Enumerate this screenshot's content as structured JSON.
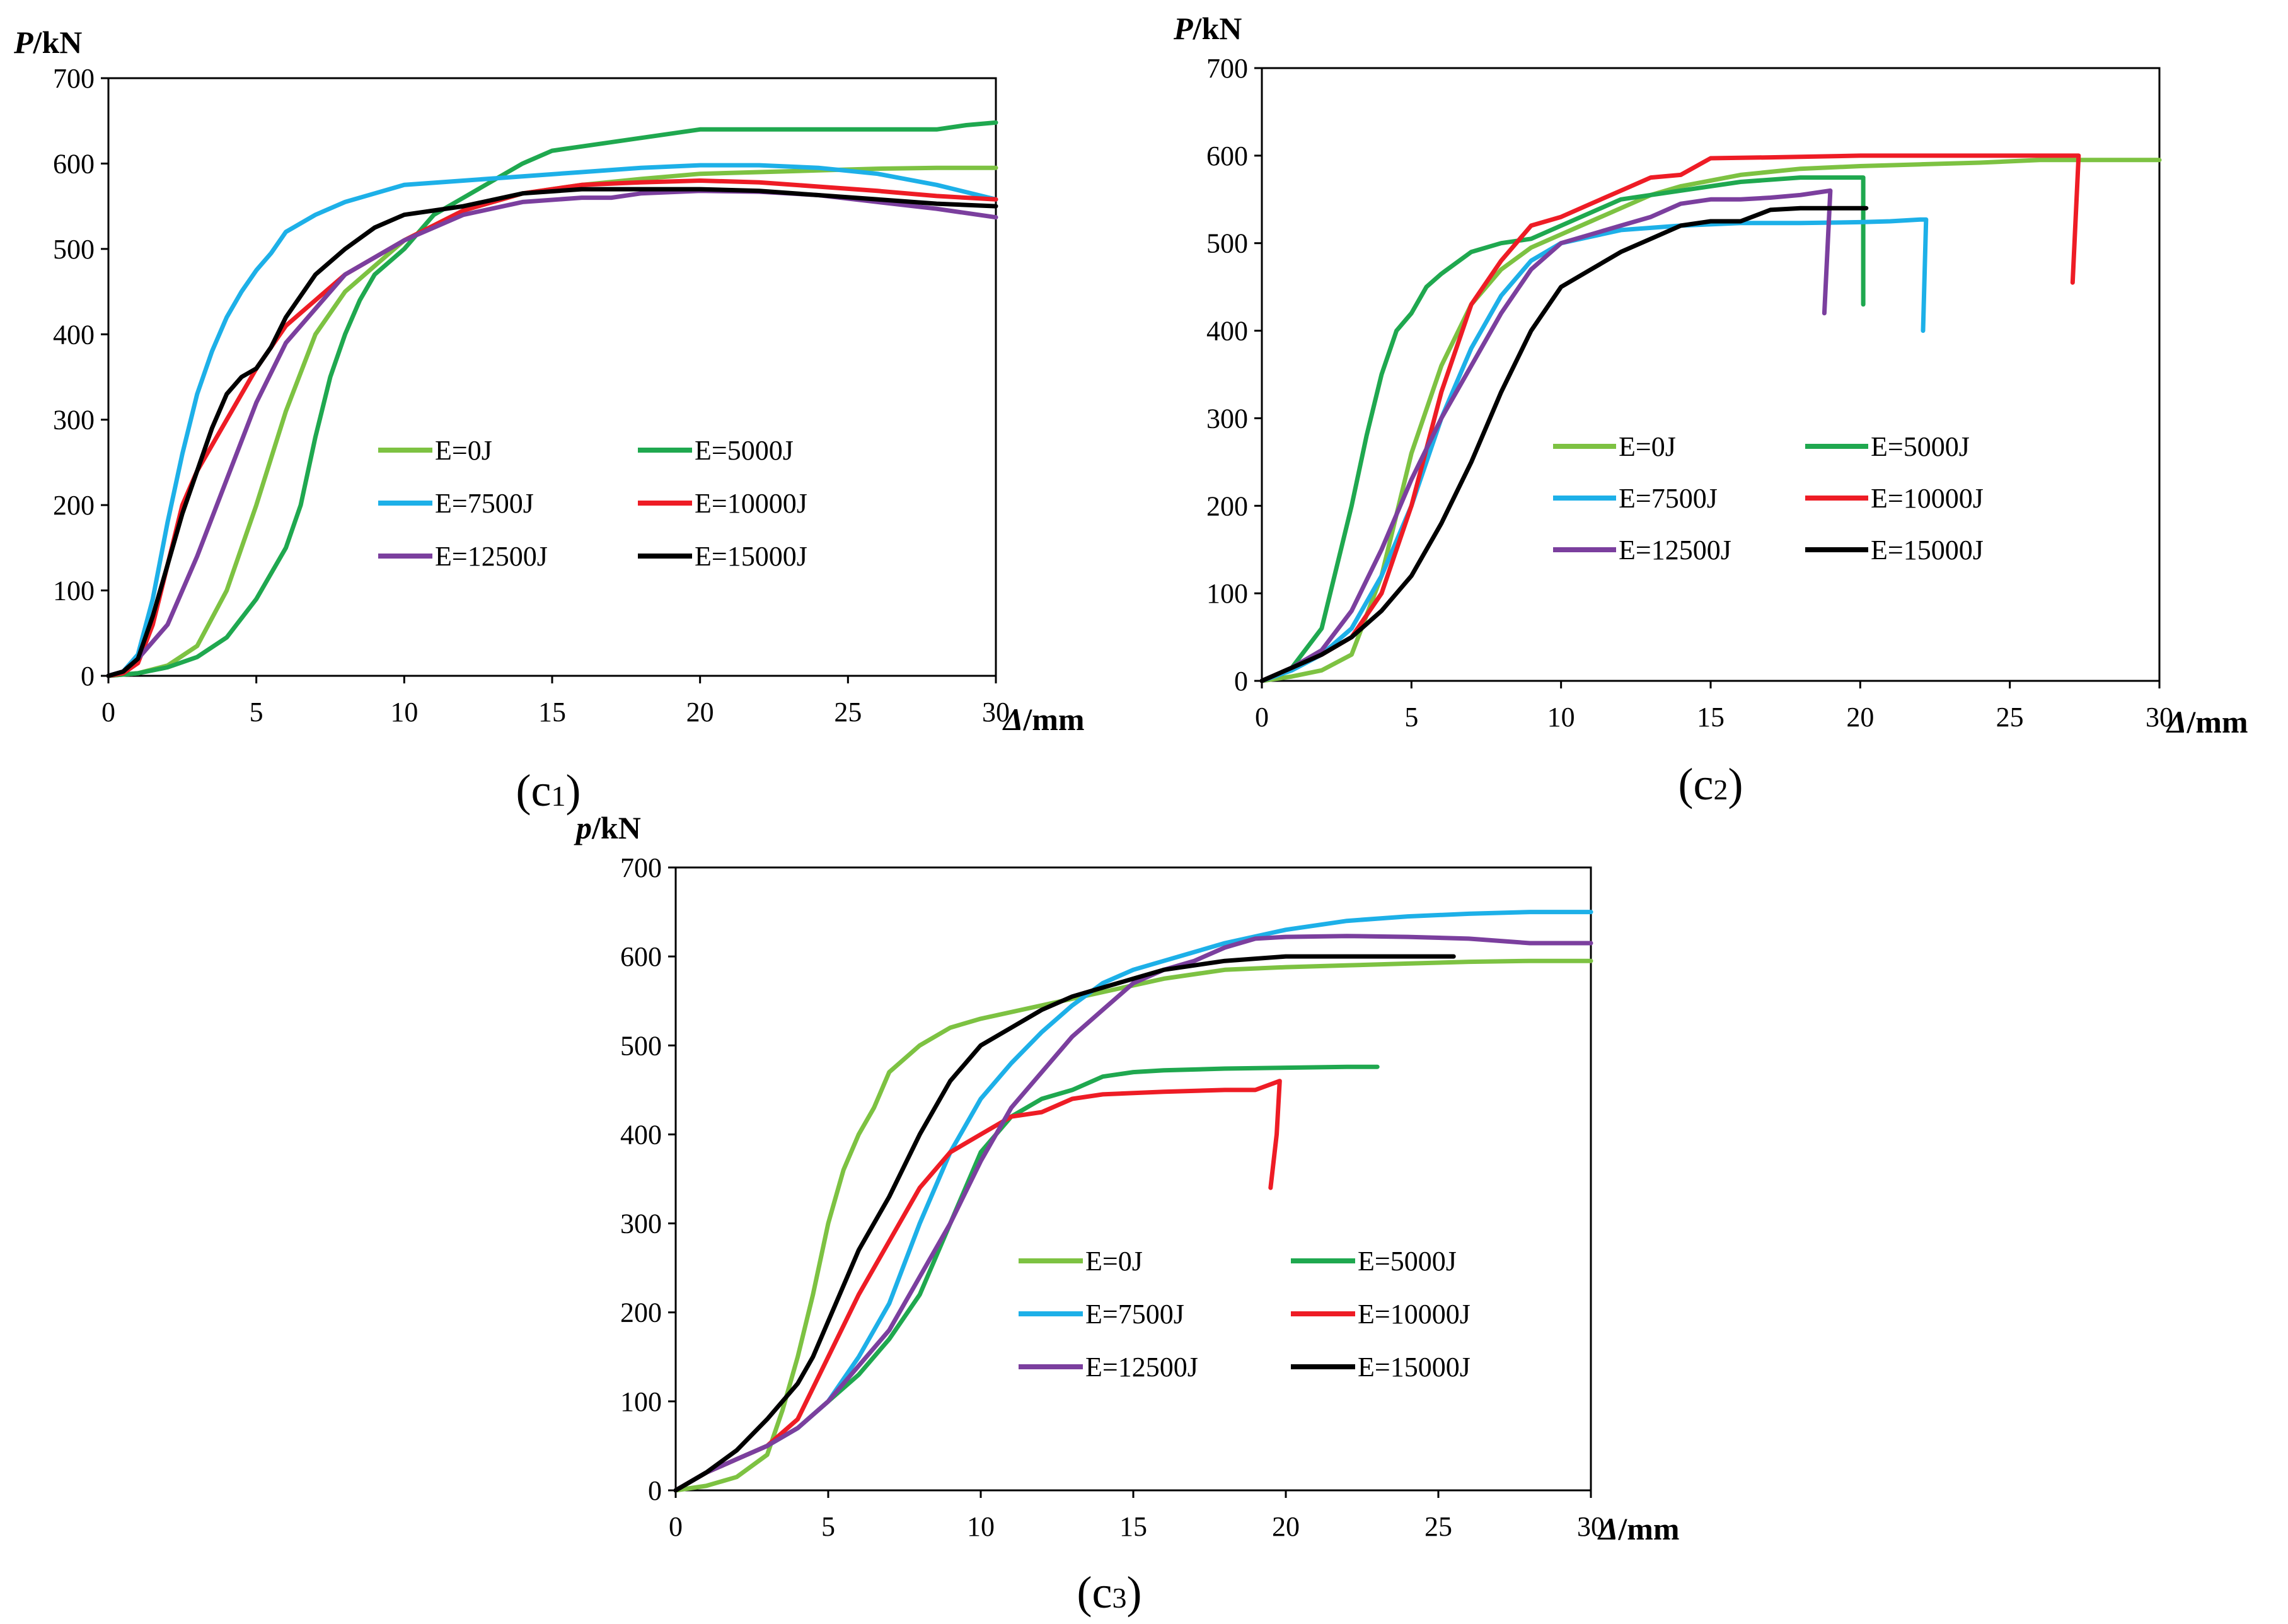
{
  "chart_data": [
    {
      "id": "c1",
      "type": "line",
      "caption_letter": "c",
      "caption_index": "1",
      "ylabel_var": "P",
      "ylabel_unit": "/kN",
      "xlabel_var": "Δ",
      "xlabel_unit": "/mm",
      "xlim": [
        0,
        30
      ],
      "ylim": [
        0,
        700
      ],
      "xticks": [
        "0",
        "5",
        "10",
        "15",
        "20",
        "25",
        "30"
      ],
      "yticks": [
        "0",
        "100",
        "200",
        "300",
        "400",
        "500",
        "600",
        "700"
      ],
      "series": [
        {
          "name": "E=0J",
          "color": "#7DC242",
          "x": [
            0,
            1,
            2,
            3,
            4,
            5,
            6,
            7,
            8,
            9,
            10,
            12,
            14,
            16,
            18,
            20,
            22,
            24,
            26,
            28,
            30
          ],
          "y": [
            0,
            3,
            12,
            35,
            100,
            200,
            310,
            400,
            450,
            480,
            510,
            545,
            565,
            575,
            582,
            588,
            590,
            592,
            594,
            595,
            595
          ]
        },
        {
          "name": "E=5000J",
          "color": "#1FA84F",
          "x": [
            0,
            1,
            2,
            3,
            4,
            5,
            6,
            6.5,
            7,
            7.5,
            8,
            8.5,
            9,
            10,
            11,
            12,
            13,
            14,
            15,
            16,
            18,
            20,
            22,
            24,
            26,
            28,
            29,
            30
          ],
          "y": [
            0,
            3,
            10,
            22,
            45,
            90,
            150,
            200,
            280,
            350,
            400,
            440,
            470,
            500,
            540,
            560,
            580,
            600,
            615,
            620,
            630,
            640,
            640,
            640,
            640,
            640,
            645,
            648
          ]
        },
        {
          "name": "E=7500J",
          "color": "#1DB0E8",
          "x": [
            0,
            0.5,
            1,
            1.5,
            2,
            2.5,
            3,
            3.5,
            4,
            4.5,
            5,
            5.5,
            6,
            7,
            8,
            9,
            10,
            12,
            14,
            16,
            18,
            20,
            22,
            24,
            26,
            28,
            30
          ],
          "y": [
            0,
            5,
            25,
            90,
            180,
            260,
            330,
            380,
            420,
            450,
            475,
            495,
            520,
            540,
            555,
            565,
            575,
            580,
            585,
            590,
            595,
            598,
            598,
            595,
            588,
            575,
            558
          ]
        },
        {
          "name": "E=10000J",
          "color": "#EE1C25",
          "x": [
            0,
            0.5,
            1,
            1.5,
            2,
            2.5,
            3,
            4,
            5,
            6,
            7,
            8,
            9,
            10,
            12,
            14,
            16,
            18,
            20,
            22,
            24,
            26,
            28,
            30
          ],
          "y": [
            0,
            3,
            15,
            60,
            130,
            200,
            240,
            300,
            360,
            410,
            440,
            470,
            490,
            510,
            545,
            565,
            575,
            578,
            580,
            578,
            573,
            568,
            562,
            558
          ]
        },
        {
          "name": "E=12500J",
          "color": "#7B3F9E",
          "x": [
            0,
            0.5,
            1,
            1.5,
            2,
            3,
            4,
            5,
            6,
            7,
            8,
            9,
            10,
            12,
            14,
            16,
            17,
            18,
            20,
            22,
            24,
            26,
            28,
            30
          ],
          "y": [
            0,
            5,
            20,
            40,
            60,
            140,
            230,
            320,
            390,
            430,
            470,
            490,
            510,
            540,
            555,
            560,
            560,
            565,
            568,
            567,
            563,
            555,
            547,
            537
          ]
        },
        {
          "name": "E=15000J",
          "color": "#000000",
          "x": [
            0,
            0.5,
            1,
            1.5,
            2,
            2.5,
            3,
            3.5,
            4,
            4.5,
            5,
            5.5,
            6,
            7,
            8,
            9,
            10,
            12,
            14,
            16,
            18,
            20,
            22,
            24,
            26,
            28,
            30
          ],
          "y": [
            0,
            5,
            20,
            70,
            130,
            190,
            240,
            290,
            330,
            350,
            360,
            385,
            420,
            470,
            500,
            525,
            540,
            550,
            565,
            570,
            570,
            570,
            568,
            563,
            558,
            553,
            550
          ]
        }
      ],
      "legend_layout": "2 columns, lower-right inside plot"
    },
    {
      "id": "c2",
      "type": "line",
      "caption_letter": "c",
      "caption_index": "2",
      "ylabel_var": "P",
      "ylabel_unit": "/kN",
      "xlabel_var": "Δ",
      "xlabel_unit": "/mm",
      "xlim": [
        0,
        30
      ],
      "ylim": [
        0,
        700
      ],
      "xticks": [
        "0",
        "5",
        "10",
        "15",
        "20",
        "25",
        "30"
      ],
      "yticks": [
        "0",
        "100",
        "200",
        "300",
        "400",
        "500",
        "600",
        "700"
      ],
      "series": [
        {
          "name": "E=0J",
          "color": "#7DC242",
          "x": [
            0,
            1,
            2,
            3,
            4,
            5,
            6,
            7,
            8,
            9,
            10,
            11,
            12,
            13,
            14,
            16,
            18,
            20,
            22,
            24,
            26,
            28,
            30
          ],
          "y": [
            0,
            5,
            12,
            30,
            120,
            260,
            360,
            430,
            470,
            495,
            510,
            525,
            540,
            555,
            565,
            578,
            585,
            588,
            590,
            592,
            595,
            595,
            595
          ]
        },
        {
          "name": "E=5000J",
          "color": "#1FA84F",
          "x": [
            0,
            1,
            2,
            3,
            3.5,
            4,
            4.5,
            5,
            5.5,
            6,
            7,
            8,
            9,
            10,
            12,
            14,
            16,
            18,
            19,
            20.1,
            20.1
          ],
          "y": [
            0,
            15,
            60,
            200,
            280,
            350,
            400,
            420,
            450,
            465,
            490,
            500,
            505,
            520,
            550,
            560,
            570,
            575,
            575,
            575,
            430
          ]
        },
        {
          "name": "E=7500J",
          "color": "#1DB0E8",
          "x": [
            0,
            1,
            2,
            3,
            4,
            5,
            6,
            7,
            8,
            9,
            10,
            12,
            14,
            16,
            18,
            20,
            21,
            22,
            22.2,
            22.1
          ],
          "y": [
            0,
            12,
            30,
            60,
            120,
            200,
            300,
            380,
            440,
            480,
            500,
            515,
            520,
            523,
            523,
            524,
            525,
            527,
            527,
            400
          ]
        },
        {
          "name": "E=10000J",
          "color": "#EE1C25",
          "x": [
            0,
            1,
            2,
            3,
            4,
            5,
            6,
            7,
            8,
            9,
            10,
            11,
            12,
            13,
            14,
            15,
            17,
            20,
            23,
            25,
            27,
            27.3,
            27.1
          ],
          "y": [
            0,
            15,
            30,
            50,
            100,
            200,
            330,
            430,
            480,
            520,
            530,
            545,
            560,
            575,
            578,
            597,
            598,
            600,
            600,
            600,
            600,
            600,
            455
          ]
        },
        {
          "name": "E=12500J",
          "color": "#7B3F9E",
          "x": [
            0,
            1,
            2,
            3,
            4,
            5,
            6,
            7,
            8,
            9,
            10,
            11,
            12,
            13,
            14,
            15,
            16,
            17,
            18,
            19,
            19,
            18.8
          ],
          "y": [
            0,
            15,
            35,
            80,
            150,
            230,
            300,
            360,
            420,
            470,
            500,
            510,
            520,
            530,
            545,
            550,
            550,
            552,
            555,
            560,
            560,
            420
          ]
        },
        {
          "name": "E=15000J",
          "color": "#000000",
          "x": [
            0,
            1,
            2,
            3,
            4,
            5,
            6,
            7,
            8,
            9,
            10,
            11,
            12,
            13,
            14,
            15,
            16,
            17,
            18,
            19,
            20,
            20.2
          ],
          "y": [
            0,
            15,
            30,
            50,
            80,
            120,
            180,
            250,
            330,
            400,
            450,
            470,
            490,
            505,
            520,
            525,
            525,
            538,
            540,
            540,
            540,
            540
          ]
        }
      ],
      "legend_layout": "2 columns, lower-right inside plot"
    },
    {
      "id": "c3",
      "type": "line",
      "caption_letter": "c",
      "caption_index": "3",
      "ylabel_var": "p",
      "ylabel_unit": "/kN",
      "xlabel_var": "Δ",
      "xlabel_unit": "/mm",
      "xlim": [
        0,
        30
      ],
      "ylim": [
        0,
        700
      ],
      "xticks": [
        "0",
        "5",
        "10",
        "15",
        "20",
        "25",
        "30"
      ],
      "yticks": [
        "0",
        "100",
        "200",
        "300",
        "400",
        "500",
        "600",
        "700"
      ],
      "series": [
        {
          "name": "E=0J",
          "color": "#7DC242",
          "x": [
            0,
            1,
            2,
            3,
            3.5,
            4,
            4.5,
            5,
            5.5,
            6,
            6.5,
            7,
            8,
            9,
            10,
            12,
            14,
            16,
            18,
            20,
            22,
            24,
            26,
            28,
            30
          ],
          "y": [
            0,
            5,
            15,
            40,
            90,
            150,
            220,
            300,
            360,
            400,
            430,
            470,
            500,
            520,
            530,
            545,
            560,
            575,
            585,
            588,
            590,
            592,
            594,
            595,
            595
          ]
        },
        {
          "name": "E=5000J",
          "color": "#1FA84F",
          "x": [
            0,
            1,
            2,
            3,
            4,
            5,
            6,
            7,
            8,
            9,
            10,
            11,
            12,
            13,
            14,
            15,
            16,
            18,
            20,
            22,
            23
          ],
          "y": [
            0,
            20,
            35,
            50,
            70,
            100,
            130,
            170,
            220,
            300,
            380,
            420,
            440,
            450,
            465,
            470,
            472,
            474,
            475,
            476,
            476
          ]
        },
        {
          "name": "E=7500J",
          "color": "#1DB0E8",
          "x": [
            0,
            1,
            2,
            3,
            4,
            5,
            6,
            7,
            8,
            9,
            10,
            11,
            12,
            13,
            14,
            15,
            16,
            17,
            18,
            20,
            22,
            24,
            26,
            28,
            30
          ],
          "y": [
            0,
            20,
            35,
            50,
            70,
            100,
            150,
            210,
            300,
            380,
            440,
            480,
            515,
            545,
            570,
            585,
            595,
            605,
            615,
            630,
            640,
            645,
            648,
            650,
            650
          ]
        },
        {
          "name": "E=10000J",
          "color": "#EE1C25",
          "x": [
            0,
            1,
            2,
            3,
            4,
            5,
            6,
            7,
            8,
            9,
            10,
            11,
            12,
            13,
            14,
            16,
            18,
            19,
            19.8,
            19.7,
            19.5
          ],
          "y": [
            0,
            20,
            35,
            50,
            80,
            150,
            220,
            280,
            340,
            380,
            400,
            420,
            425,
            440,
            445,
            448,
            450,
            450,
            460,
            400,
            340
          ]
        },
        {
          "name": "E=12500J",
          "color": "#7B3F9E",
          "x": [
            0,
            1,
            2,
            3,
            4,
            5,
            6,
            7,
            8,
            9,
            10,
            11,
            12,
            13,
            14,
            15,
            16,
            17,
            18,
            19,
            20,
            22,
            24,
            26,
            28,
            30
          ],
          "y": [
            0,
            20,
            35,
            50,
            70,
            100,
            140,
            180,
            240,
            300,
            370,
            430,
            470,
            510,
            540,
            570,
            585,
            595,
            610,
            620,
            622,
            623,
            622,
            620,
            615,
            615
          ]
        },
        {
          "name": "E=15000J",
          "color": "#000000",
          "x": [
            0,
            1,
            2,
            3,
            4,
            4.5,
            5,
            5.5,
            6,
            7,
            8,
            9,
            10,
            11,
            12,
            13,
            14,
            15,
            16,
            18,
            20,
            22,
            24,
            25.5
          ],
          "y": [
            0,
            20,
            45,
            80,
            120,
            150,
            190,
            230,
            270,
            330,
            400,
            460,
            500,
            520,
            540,
            555,
            565,
            575,
            585,
            595,
            600,
            600,
            600,
            600
          ]
        }
      ],
      "legend_layout": "2 columns, lower-right inside plot"
    }
  ]
}
